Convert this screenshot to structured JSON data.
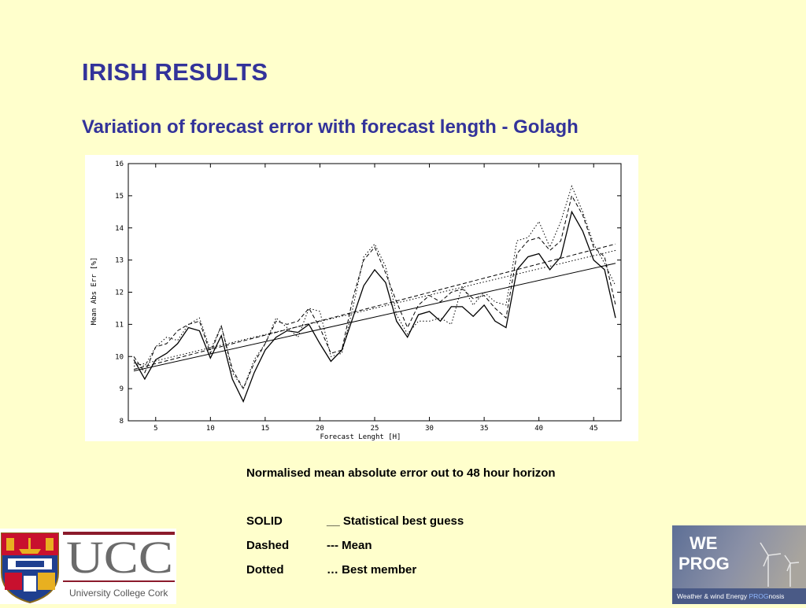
{
  "slide": {
    "title": "IRISH RESULTS",
    "subtitle": "Variation of forecast error with forecast length - Golagh",
    "caption": "Normalised mean absolute error out to 48 hour horizon",
    "legend": [
      {
        "key": "SOLID",
        "desc": "__ Statistical best guess"
      },
      {
        "key": "Dashed",
        "desc": "--- Mean"
      },
      {
        "key": "Dotted",
        "desc": "… Best member"
      }
    ]
  },
  "logos": {
    "ucc_text": "UCC",
    "ucc_name": "University College Cork",
    "weprog_line1": "WE",
    "weprog_line2": "PROG",
    "weprog_tagline_a": "Weather & wind Energy ",
    "weprog_tagline_b": "PROG",
    "weprog_tagline_c": "nosis"
  },
  "chart_data": {
    "type": "line",
    "xlabel": "Forecast Lenght [H]",
    "ylabel": "Mean Abs Err [%]",
    "xlim": [
      2.5,
      47.5
    ],
    "ylim": [
      8,
      16
    ],
    "xticks": [
      5,
      10,
      15,
      20,
      25,
      30,
      35,
      40,
      45
    ],
    "yticks": [
      8,
      9,
      10,
      11,
      12,
      13,
      14,
      15,
      16
    ],
    "grid": false,
    "x": [
      3,
      4,
      5,
      6,
      7,
      8,
      9,
      10,
      11,
      12,
      13,
      14,
      15,
      16,
      17,
      18,
      19,
      20,
      21,
      22,
      23,
      24,
      25,
      26,
      27,
      28,
      29,
      30,
      31,
      32,
      33,
      34,
      35,
      36,
      37,
      38,
      39,
      40,
      41,
      42,
      43,
      44,
      45,
      46,
      47
    ],
    "series": [
      {
        "style": "solid",
        "values": [
          9.9,
          9.3,
          9.9,
          10.1,
          10.4,
          10.9,
          10.8,
          9.95,
          10.65,
          9.3,
          8.6,
          9.5,
          10.2,
          10.6,
          10.8,
          10.75,
          11.0,
          10.4,
          9.85,
          10.2,
          11.2,
          12.2,
          12.7,
          12.3,
          11.1,
          10.6,
          11.3,
          11.4,
          11.1,
          11.55,
          11.55,
          11.25,
          11.6,
          11.1,
          10.9,
          12.7,
          13.1,
          13.2,
          12.7,
          13.1,
          14.5,
          13.9,
          13.0,
          12.7,
          11.2
        ]
      },
      {
        "style": "dashed",
        "values": [
          10.0,
          9.5,
          10.3,
          10.4,
          10.8,
          11.0,
          11.1,
          10.1,
          10.95,
          9.6,
          9.0,
          9.8,
          10.4,
          11.1,
          11.0,
          11.1,
          11.5,
          10.9,
          10.1,
          10.2,
          11.8,
          13.0,
          13.4,
          12.6,
          11.7,
          10.9,
          11.6,
          11.9,
          11.7,
          12.0,
          12.1,
          11.8,
          11.9,
          11.5,
          11.2,
          13.2,
          13.6,
          13.7,
          13.3,
          13.6,
          15.0,
          14.4,
          13.4,
          13.1,
          11.6
        ]
      },
      {
        "style": "dotted",
        "values": [
          9.8,
          9.7,
          10.3,
          10.6,
          10.5,
          11.0,
          11.2,
          10.2,
          10.95,
          9.5,
          9.0,
          9.9,
          10.4,
          11.2,
          10.9,
          10.6,
          11.5,
          11.4,
          10.0,
          10.1,
          11.5,
          13.1,
          13.5,
          12.8,
          11.3,
          10.7,
          11.1,
          11.1,
          11.2,
          11.0,
          12.2,
          11.6,
          12.0,
          11.7,
          11.6,
          13.6,
          13.7,
          14.2,
          13.4,
          14.2,
          15.3,
          14.5,
          13.5,
          12.9,
          12.2
        ]
      }
    ],
    "trend_lines": [
      {
        "style": "solid",
        "start": [
          3,
          9.55
        ],
        "end": [
          47,
          12.9
        ]
      },
      {
        "style": "dashed",
        "start": [
          3,
          9.6
        ],
        "end": [
          47,
          13.5
        ]
      },
      {
        "style": "dotted",
        "start": [
          3,
          9.7
        ],
        "end": [
          47,
          13.3
        ]
      }
    ]
  }
}
